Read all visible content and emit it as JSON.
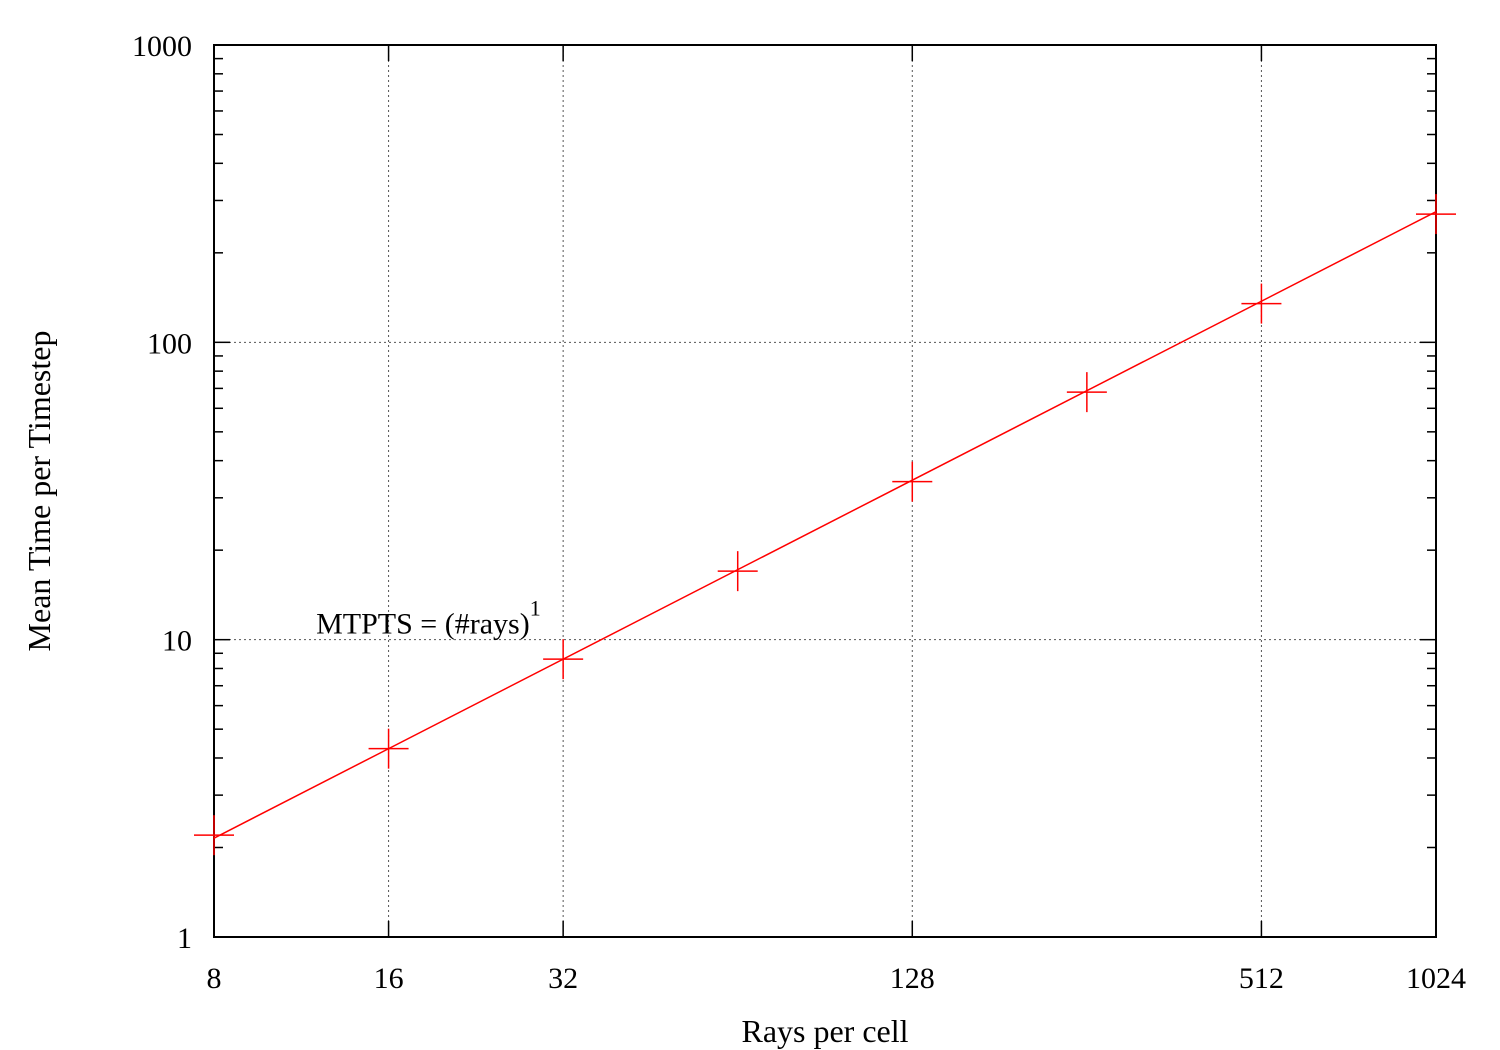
{
  "chart_data": {
    "type": "line",
    "title": "",
    "xlabel": "Rays per cell",
    "ylabel": "Mean Time per Timestep",
    "x_scale": "log2",
    "y_scale": "log10",
    "xlim": [
      8,
      1024
    ],
    "ylim": [
      1,
      1000
    ],
    "xticks": [
      8,
      16,
      32,
      128,
      512,
      1024
    ],
    "xtick_labels": [
      "8",
      "16",
      "32",
      "128",
      "512",
      "1024"
    ],
    "yticks": [
      1,
      10,
      100,
      1000
    ],
    "ytick_labels": [
      "1",
      "10",
      "100",
      "1000"
    ],
    "grid": true,
    "grid_x": [
      16,
      32,
      128,
      512
    ],
    "grid_y": [
      10,
      100
    ],
    "annotation": {
      "text": "MTPTS = (#rays)",
      "superscript": "1",
      "x": 12,
      "y": 10.5
    },
    "series": [
      {
        "color": "#ff0000",
        "marker": "plus",
        "x": [
          8,
          16,
          32,
          64,
          128,
          256,
          512,
          1024
        ],
        "y": [
          2.2,
          4.3,
          8.6,
          17,
          34,
          68,
          135,
          270
        ],
        "fit_line": [
          [
            8,
            2.15
          ],
          [
            1024,
            275
          ]
        ]
      }
    ]
  }
}
